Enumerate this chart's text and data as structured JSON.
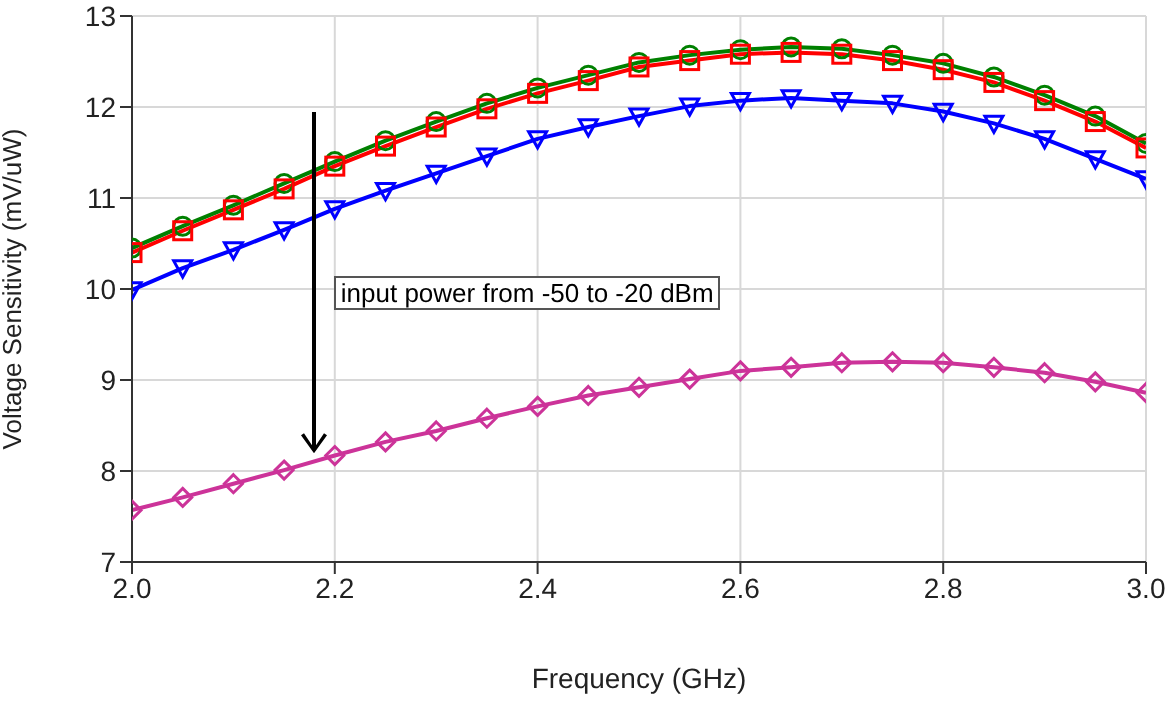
{
  "chart_data": {
    "type": "line",
    "xlabel": "Frequency (GHz)",
    "ylabel": "Voltage Sensitivity (mV/uW)",
    "x": [
      2.0,
      2.05,
      2.1,
      2.15,
      2.2,
      2.25,
      2.3,
      2.35,
      2.4,
      2.45,
      2.5,
      2.55,
      2.6,
      2.65,
      2.7,
      2.75,
      2.8,
      2.85,
      2.9,
      2.95,
      3.0
    ],
    "series": [
      {
        "color": "#008000",
        "marker": "circle",
        "values": [
          10.45,
          10.69,
          10.92,
          11.16,
          11.4,
          11.63,
          11.84,
          12.04,
          12.21,
          12.35,
          12.49,
          12.57,
          12.63,
          12.66,
          12.64,
          12.57,
          12.48,
          12.33,
          12.13,
          11.9,
          11.6
        ]
      },
      {
        "color": "#ff0000",
        "marker": "square",
        "values": [
          10.4,
          10.64,
          10.87,
          11.1,
          11.35,
          11.57,
          11.78,
          11.98,
          12.15,
          12.29,
          12.44,
          12.51,
          12.58,
          12.6,
          12.58,
          12.51,
          12.41,
          12.27,
          12.07,
          11.84,
          11.55
        ]
      },
      {
        "color": "#0000ff",
        "marker": "triangle",
        "values": [
          9.99,
          10.23,
          10.43,
          10.65,
          10.88,
          11.08,
          11.27,
          11.46,
          11.65,
          11.78,
          11.9,
          12.01,
          12.07,
          12.1,
          12.07,
          12.04,
          11.95,
          11.82,
          11.65,
          11.43,
          11.21
        ]
      },
      {
        "color": "#cc3399",
        "marker": "diamond",
        "values": [
          7.57,
          7.71,
          7.86,
          8.01,
          8.17,
          8.32,
          8.44,
          8.58,
          8.71,
          8.83,
          8.92,
          9.01,
          9.1,
          9.14,
          9.19,
          9.2,
          9.19,
          9.14,
          9.08,
          8.98,
          8.86
        ]
      }
    ],
    "xlim": [
      2.0,
      3.0
    ],
    "xticks": [
      {
        "value": 2.0,
        "label": "2.0"
      },
      {
        "value": 2.2,
        "label": "2.2"
      },
      {
        "value": 2.4,
        "label": "2.4"
      },
      {
        "value": 2.6,
        "label": "2.6"
      },
      {
        "value": 2.8,
        "label": "2.8"
      },
      {
        "value": 3.0,
        "label": "3.0"
      }
    ],
    "ylim": [
      7,
      13
    ],
    "yticks": [
      7,
      8,
      9,
      10,
      11,
      12,
      13
    ],
    "grid": true,
    "legend": false,
    "annotations": [
      "input power from -50 to -20 dBm"
    ]
  }
}
